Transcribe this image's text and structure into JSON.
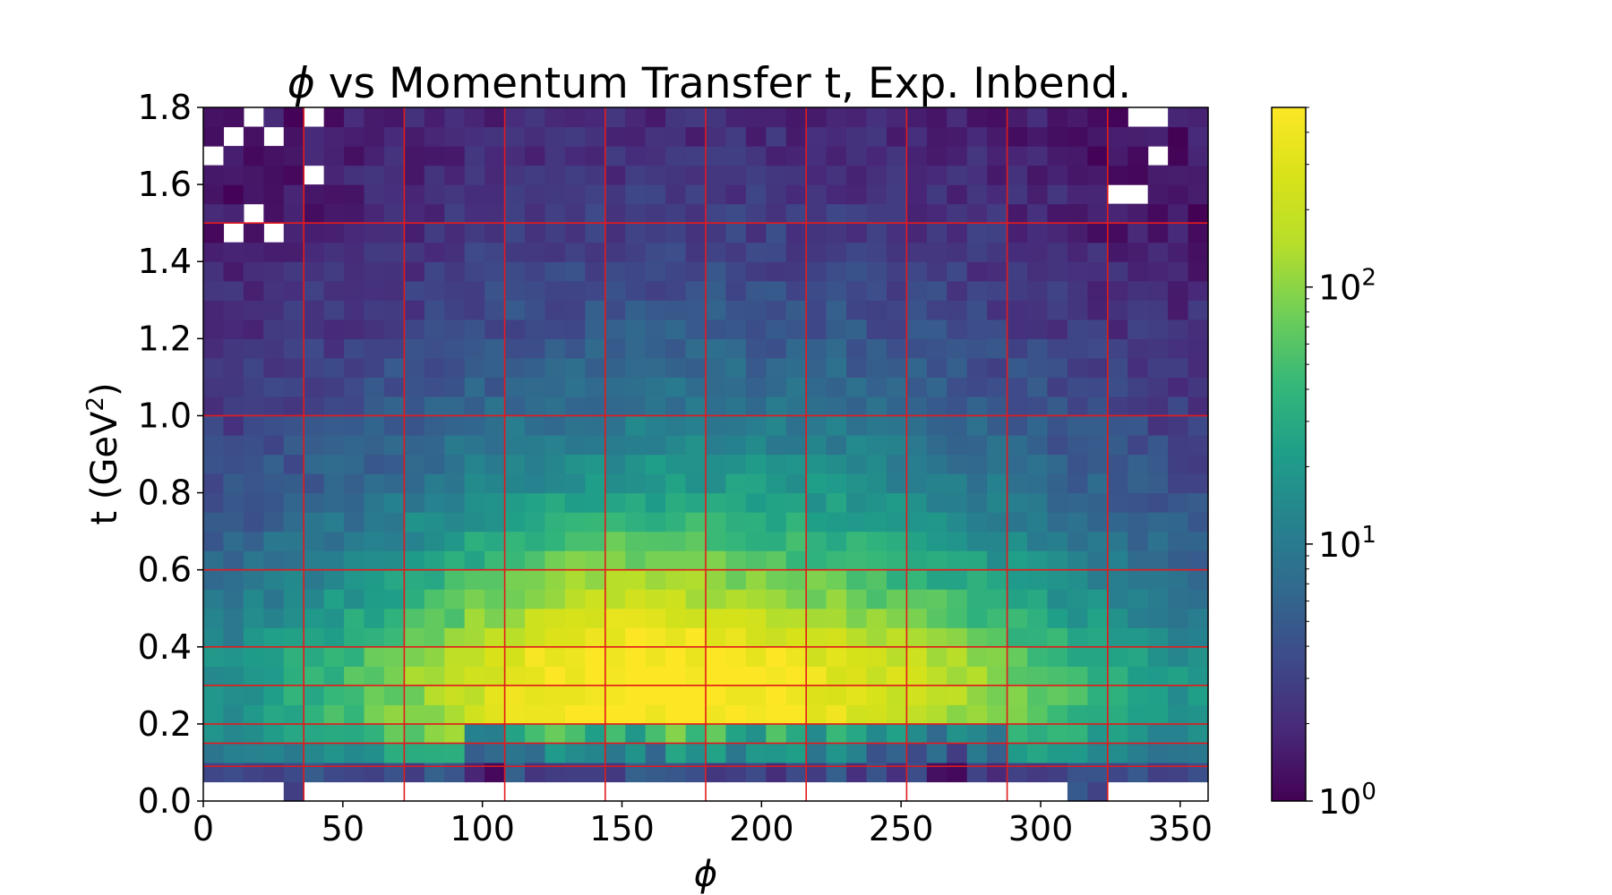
{
  "chart_data": {
    "type": "heatmap",
    "title": "ϕ vs Momentum Transfer t, Exp. Inbend.",
    "title_symbol": "ϕ",
    "title_rest": " vs Momentum Transfer t, Exp. Inbend.",
    "xlabel": "ϕ",
    "ylabel": "t (GeV²)",
    "ylabel_main": "t (GeV",
    "ylabel_sup": "2",
    "ylabel_close": ")",
    "xlim": [
      0,
      360
    ],
    "ylim": [
      0,
      1.8
    ],
    "x_ticks": [
      0,
      50,
      100,
      150,
      200,
      250,
      300,
      350
    ],
    "x_tick_labels": [
      "0",
      "50",
      "100",
      "150",
      "200",
      "250",
      "300",
      "350"
    ],
    "y_ticks": [
      0.0,
      0.2,
      0.4,
      0.6,
      0.8,
      1.0,
      1.2,
      1.4,
      1.6,
      1.8
    ],
    "y_tick_labels": [
      "0.0",
      "0.2",
      "0.4",
      "0.6",
      "0.8",
      "1.0",
      "1.2",
      "1.4",
      "1.6",
      "1.8"
    ],
    "bins_x": 50,
    "bins_y": 36,
    "colormap": "viridis",
    "color_scale": "log",
    "colorbar": {
      "min": 1,
      "max": 500,
      "ticks": [
        1,
        10,
        100
      ],
      "tick_base": "10",
      "tick_exponents": [
        "0",
        "1",
        "2"
      ]
    },
    "peak_region": {
      "phi": 140,
      "t": 0.45,
      "max_count": 500
    },
    "red_grid": {
      "color": "#e31a1c",
      "phi_lines": [
        36,
        72,
        108,
        144,
        180,
        216,
        252,
        288,
        324
      ],
      "t_lines": [
        0.09,
        0.15,
        0.2,
        0.3,
        0.4,
        0.6,
        1.0,
        1.5
      ]
    },
    "grid": false
  }
}
